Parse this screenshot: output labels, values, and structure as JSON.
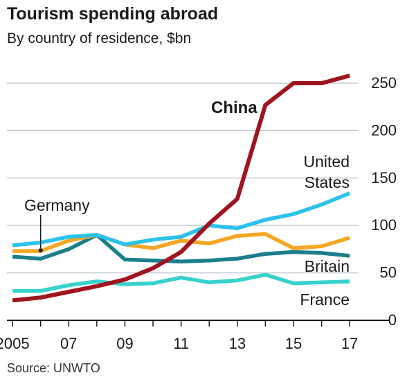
{
  "chart_data": {
    "type": "line",
    "title": "Tourism spending abroad",
    "subtitle": "By country of residence, $bn",
    "source": "Source: UNWTO",
    "x": [
      2005,
      2006,
      2007,
      2008,
      2009,
      2010,
      2011,
      2012,
      2013,
      2014,
      2015,
      2016,
      2017
    ],
    "x_tick_values": [
      2005,
      2007,
      2009,
      2011,
      2013,
      2015,
      2017
    ],
    "x_tick_labels": [
      "2005",
      "07",
      "09",
      "11",
      "13",
      "15",
      "17"
    ],
    "xlim": [
      2004.8,
      2018.4
    ],
    "ylim": [
      0,
      250
    ],
    "y_ticks": [
      0,
      50,
      100,
      150,
      200,
      250
    ],
    "y_axis_side": "right",
    "grid": true,
    "series": [
      {
        "name": "France",
        "color": "#37d2cc",
        "values": [
          31,
          31,
          37,
          41,
          38,
          39,
          45,
          40,
          42,
          48,
          39,
          40,
          41
        ]
      },
      {
        "name": "Britain",
        "color": "#1a7f8b",
        "values": [
          67,
          65,
          75,
          90,
          64,
          63,
          62,
          63,
          65,
          70,
          72,
          71,
          68
        ]
      },
      {
        "name": "Germany",
        "color": "#f5a623",
        "values": [
          73,
          73,
          84,
          90,
          80,
          76,
          84,
          81,
          89,
          91,
          76,
          78,
          87
        ]
      },
      {
        "name": "United States",
        "color": "#2bc2eb",
        "values": [
          79,
          82,
          88,
          90,
          80,
          85,
          88,
          100,
          97,
          106,
          112,
          122,
          134
        ]
      },
      {
        "name": "China",
        "color": "#a0141e",
        "values": [
          21,
          24,
          30,
          36,
          43,
          55,
          72,
          102,
          128,
          227,
          250,
          250,
          258
        ]
      }
    ],
    "annotations": [
      {
        "text": "China",
        "series": "China",
        "bold": true
      },
      {
        "text": "United",
        "series": "United States"
      },
      {
        "text": "States",
        "series": "United States"
      },
      {
        "text": "Germany",
        "series": "Germany",
        "pointer_x": 2006
      },
      {
        "text": "Britain",
        "series": "Britain"
      },
      {
        "text": "France",
        "series": "France"
      }
    ]
  }
}
